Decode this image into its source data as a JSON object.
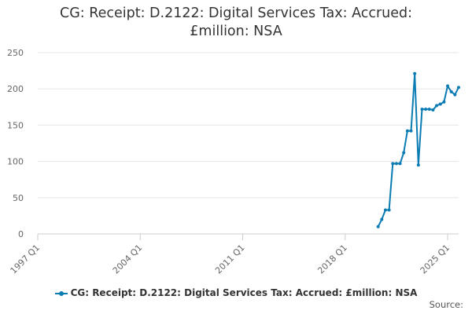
{
  "chart_data": {
    "type": "line",
    "title_lines": [
      "CG: Receipt: D.2122: Digital Services Tax: Accrued:",
      "£million: NSA"
    ],
    "xlabel": "",
    "ylabel": "",
    "x_ticks": [
      "1997 Q1",
      "2004 Q1",
      "2011 Q1",
      "2018 Q1",
      "2025 Q1"
    ],
    "y_ticks": [
      "0",
      "50",
      "100",
      "150",
      "200",
      "250"
    ],
    "ylim": [
      0,
      250
    ],
    "xlim": [
      "1997 Q1",
      "2025 Q1"
    ],
    "grid": true,
    "legend_position": "bottom",
    "series": [
      {
        "name": "CG: Receipt: D.2122: Digital Services Tax: Accrued: £million: NSA",
        "color": "#0a7cb3",
        "points": [
          {
            "x": "2020 Q2",
            "y": 10
          },
          {
            "x": "2020 Q3",
            "y": 20
          },
          {
            "x": "2020 Q4",
            "y": 33
          },
          {
            "x": "2021 Q1",
            "y": 33
          },
          {
            "x": "2021 Q2",
            "y": 97
          },
          {
            "x": "2021 Q3",
            "y": 97
          },
          {
            "x": "2021 Q4",
            "y": 97
          },
          {
            "x": "2022 Q1",
            "y": 112
          },
          {
            "x": "2022 Q2",
            "y": 142
          },
          {
            "x": "2022 Q3",
            "y": 142
          },
          {
            "x": "2022 Q4",
            "y": 221
          },
          {
            "x": "2023 Q1",
            "y": 95
          },
          {
            "x": "2023 Q2",
            "y": 172
          },
          {
            "x": "2023 Q3",
            "y": 172
          },
          {
            "x": "2023 Q4",
            "y": 172
          },
          {
            "x": "2024 Q1",
            "y": 171
          },
          {
            "x": "2024 Q2",
            "y": 177
          },
          {
            "x": "2024 Q3",
            "y": 179
          },
          {
            "x": "2024 Q4",
            "y": 182
          },
          {
            "x": "2025 Q1",
            "y": 204
          },
          {
            "x": "2025 Q2",
            "y": 196
          },
          {
            "x": "2025 Q3",
            "y": 192
          },
          {
            "x": "2025 Q4",
            "y": 202
          }
        ]
      }
    ]
  },
  "source_label": "Source:"
}
